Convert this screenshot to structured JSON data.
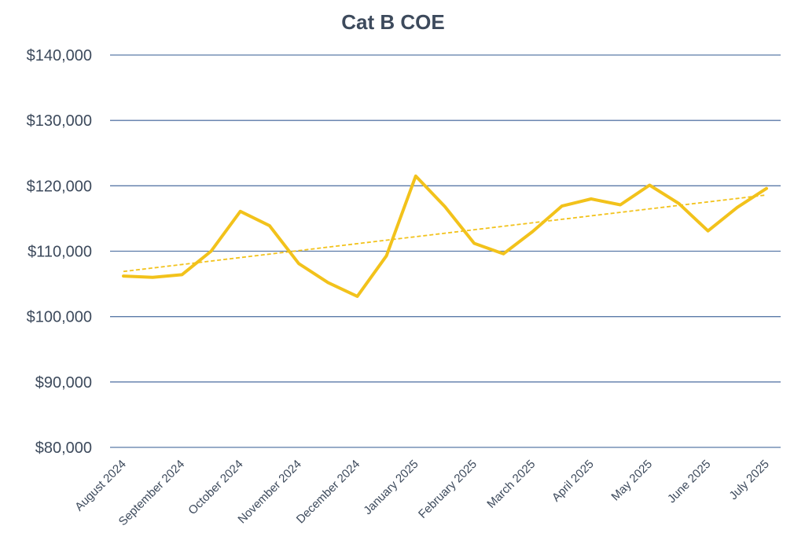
{
  "chart_data": {
    "type": "line",
    "title": "Cat B COE",
    "xlabel": "",
    "ylabel": "",
    "ylim": [
      80000,
      140000
    ],
    "yticks": [
      80000,
      90000,
      100000,
      110000,
      120000,
      130000,
      140000
    ],
    "ytick_labels": [
      "$80,000",
      "$90,000",
      "$100,000",
      "$110,000",
      "$120,000",
      "$130,000",
      "$140,000"
    ],
    "grid": true,
    "legend": "none",
    "categories": [
      "August 2024",
      "September 2024",
      "October 2024",
      "November 2024",
      "December 2024",
      "January 2025",
      "February 2025",
      "March 2025",
      "April 2025",
      "May 2025",
      "June 2025",
      "July 2025"
    ],
    "series": [
      {
        "color": "#f2c21b",
        "x": [
          0,
          0.5,
          1,
          1.5,
          2,
          2.5,
          3,
          3.5,
          4,
          4.5,
          5,
          5.5,
          6,
          6.5,
          7,
          7.5,
          8,
          8.5,
          9,
          9.5,
          10,
          10.5,
          11
        ],
        "values": [
          106200,
          106000,
          106400,
          110000,
          116100,
          113900,
          108100,
          105200,
          103100,
          109300,
          121500,
          116800,
          111200,
          109600,
          113000,
          116900,
          118000,
          117100,
          120100,
          117300,
          113100,
          116700,
          119600
        ]
      }
    ],
    "trendline": {
      "type": "linear",
      "color": "#f2c21b",
      "start": 106900,
      "end": 118600
    }
  }
}
